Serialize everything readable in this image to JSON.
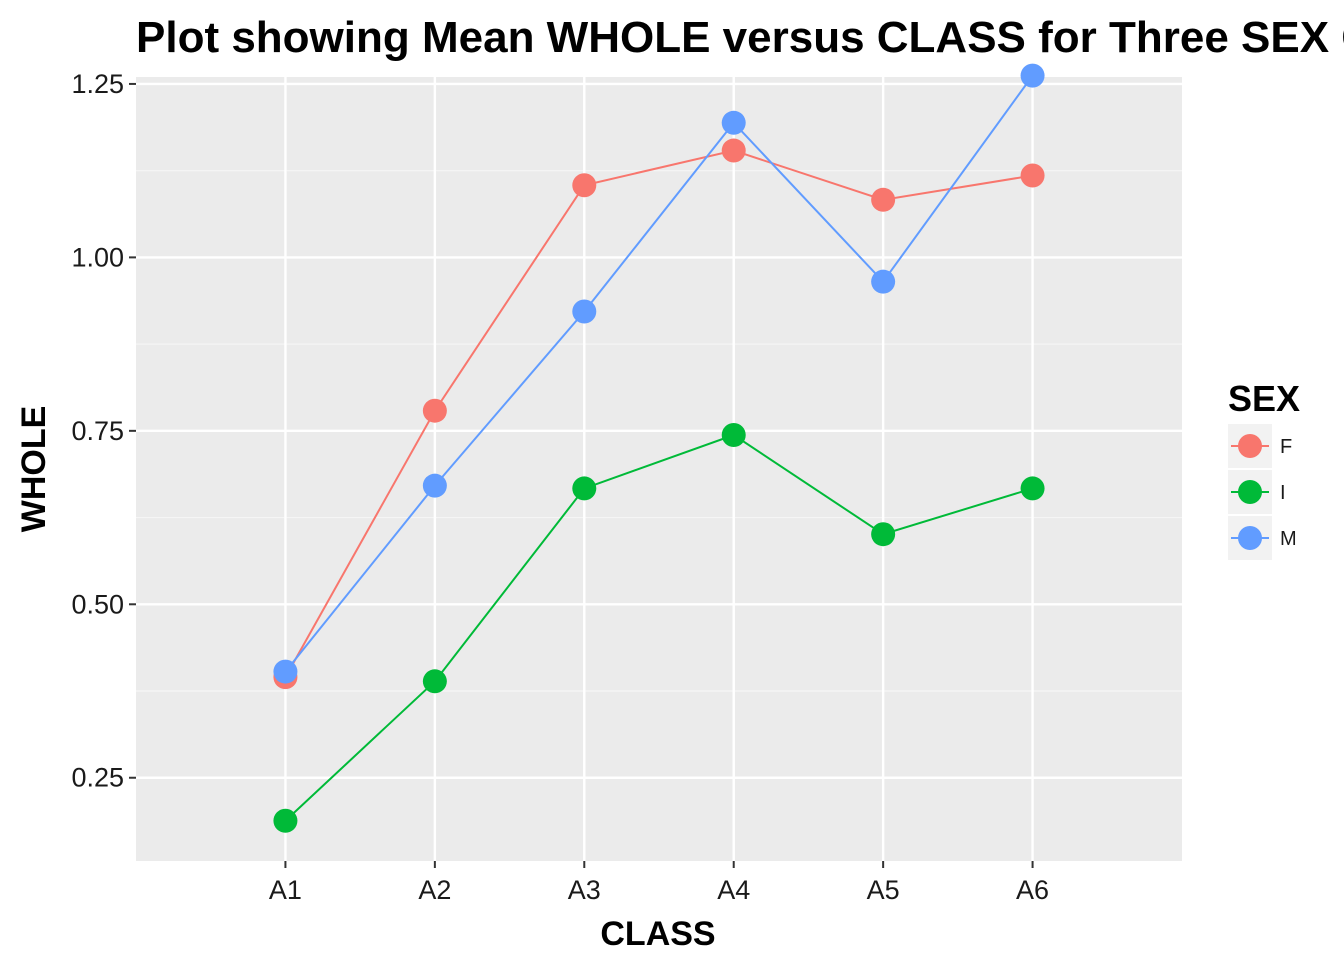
{
  "chart_data": {
    "type": "line",
    "title": "Plot showing Mean WHOLE versus CLASS for Three SEX Groups",
    "xlabel": "CLASS",
    "ylabel": "WHOLE",
    "categories": [
      "A1",
      "A2",
      "A3",
      "A4",
      "A5",
      "A6"
    ],
    "ylim": [
      0.13,
      1.26
    ],
    "yticks": [
      0.25,
      0.5,
      0.75,
      1.0,
      1.25
    ],
    "yticklabels": [
      "0.25",
      "0.50",
      "0.75",
      "1.00",
      "1.25"
    ],
    "grid": true,
    "legend": {
      "title": "SEX",
      "position": "right"
    },
    "series": [
      {
        "name": "F",
        "color": "#F8766D",
        "values": [
          0.395,
          0.779,
          1.104,
          1.154,
          1.083,
          1.118
        ]
      },
      {
        "name": "I",
        "color": "#00BA38",
        "values": [
          0.188,
          0.389,
          0.667,
          0.744,
          0.601,
          0.667
        ]
      },
      {
        "name": "M",
        "color": "#619CFF",
        "values": [
          0.403,
          0.671,
          0.922,
          1.194,
          0.965,
          1.262
        ]
      }
    ]
  }
}
